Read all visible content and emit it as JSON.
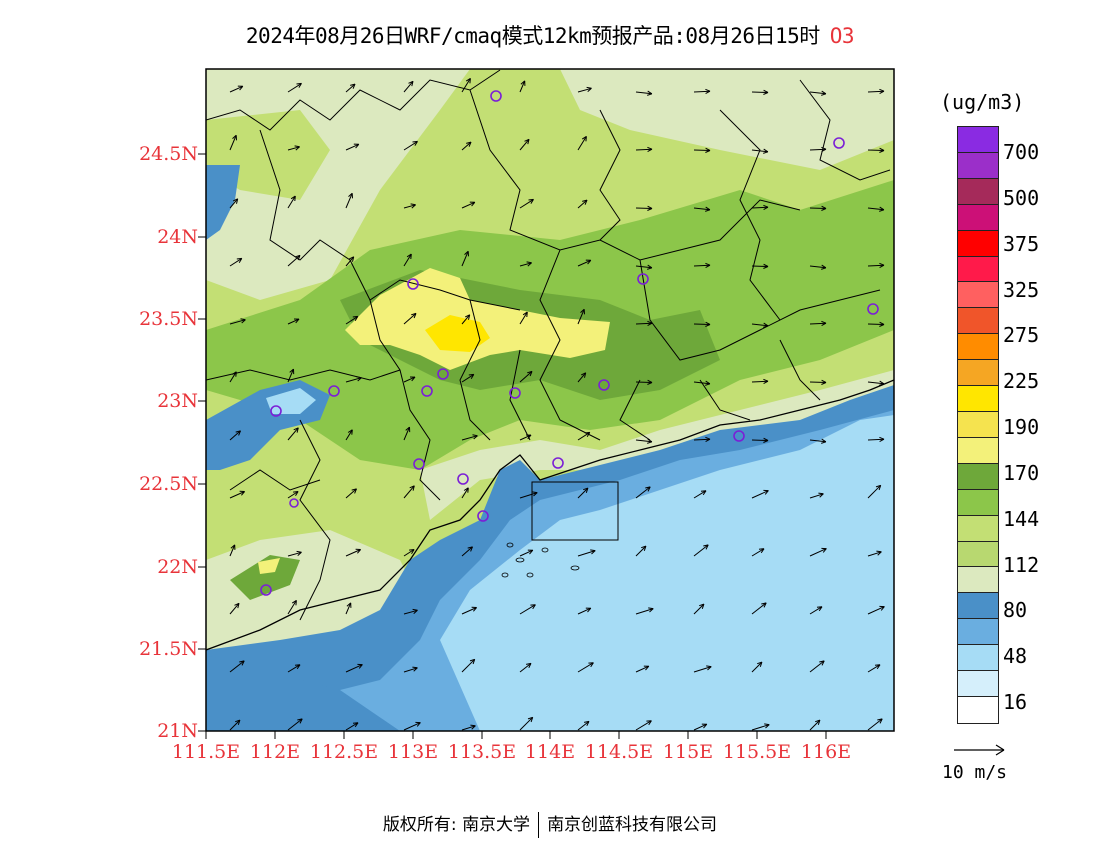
{
  "header": {
    "title": "2024年08月26日WRF/cmaq模式12km预报产品:08月26日15时",
    "pollutant": "O3"
  },
  "map": {
    "lon_labels": [
      "111.5E",
      "112E",
      "112.5E",
      "113E",
      "113.5E",
      "114E",
      "114.5E",
      "115E",
      "115.5E",
      "116E"
    ],
    "lat_labels": [
      "24.5N",
      "24N",
      "23.5N",
      "23N",
      "22.5N",
      "22N",
      "21.5N",
      "21N"
    ],
    "tick_color": "#e8343a",
    "sea_color": "#a6dcf5",
    "station_marker_color": "#7b1fd6",
    "station_count": 18
  },
  "legend": {
    "unit": "(ug/m3)",
    "labels": [
      "700",
      "500",
      "375",
      "325",
      "275",
      "225",
      "190",
      "170",
      "144",
      "112",
      "80",
      "48",
      "16"
    ],
    "colors": [
      "#8a2be2",
      "#9b2fc9",
      "#a52a5a",
      "#cc1077",
      "#ff0000",
      "#ff1a4a",
      "#ff3355",
      "#ff6060",
      "#f0552a",
      "#ff8c00",
      "#f5a623",
      "#f8c32b",
      "#ffe600",
      "#f5e34f",
      "#f3f17a",
      "#6ea83a",
      "#8cc64a",
      "#c3df74",
      "#b8d870",
      "#dce9bf",
      "#4a90c8",
      "#6aaee0",
      "#a6dcf5",
      "#d5effb",
      "#ffffff"
    ],
    "reference_vector": "10 m/s"
  },
  "footer": {
    "copyright_label": "版权所有:",
    "org1": "南京大学",
    "org2": "南京创蓝科技有限公司"
  }
}
